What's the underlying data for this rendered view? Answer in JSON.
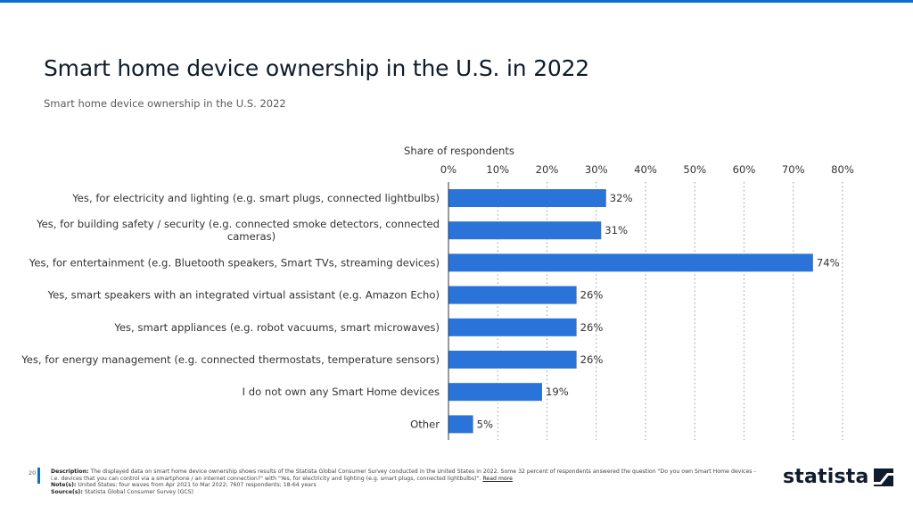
{
  "header": {
    "title": "Smart home device ownership in the U.S. in 2022",
    "subtitle": "Smart home device ownership in the U.S. 2022"
  },
  "chart_data": {
    "type": "bar",
    "orientation": "horizontal",
    "title": "Smart home device ownership in the U.S. in 2022",
    "xlabel": "Share of respondents",
    "ylabel": "",
    "xlim": [
      0,
      80
    ],
    "x_ticks": [
      0,
      10,
      20,
      30,
      40,
      50,
      60,
      70,
      80
    ],
    "x_tick_labels": [
      "0%",
      "10%",
      "20%",
      "30%",
      "40%",
      "50%",
      "60%",
      "70%",
      "80%"
    ],
    "grid": "vertical-dotted",
    "bar_color": "#2a73d9",
    "categories": [
      [
        "Yes, for electricity and lighting (e.g. smart plugs, connected lightbulbs)"
      ],
      [
        "Yes, for building safety / security (e.g. connected smoke detectors, connected",
        "cameras)"
      ],
      [
        "Yes, for entertainment (e.g. Bluetooth speakers, Smart TVs, streaming devices)"
      ],
      [
        "Yes, smart speakers with an integrated virtual assistant (e.g. Amazon Echo)"
      ],
      [
        "Yes, smart appliances (e.g. robot vacuums, smart microwaves)"
      ],
      [
        "Yes, for energy management (e.g. connected thermostats, temperature sensors)"
      ],
      [
        "I do not own any Smart Home devices"
      ],
      [
        "Other"
      ]
    ],
    "values": [
      32,
      31,
      74,
      26,
      26,
      26,
      19,
      5
    ],
    "value_labels": [
      "32%",
      "31%",
      "74%",
      "26%",
      "26%",
      "26%",
      "19%",
      "5%"
    ]
  },
  "footer": {
    "page_number": "20",
    "description_label": "Description:",
    "description": "The displayed data on smart home device ownership shows results of the Statista Global Consumer Survey conducted in the United States in 2022. Some 32 percent of respondents answered the question \"Do you own Smart Home devices - i.e. devices that you can control via a smartphone / an internet connection?\" with \"Yes, for electricity and lighting (e.g. smart plugs, connected lightbulbs)\".",
    "read_more": "Read more",
    "notes_label": "Note(s):",
    "notes": "United States; four waves from Apr 2021 to Mar 2022; 7607 respondents; 18-64 years",
    "source_label": "Source(s):",
    "source": "Statista Global Consumer Survey (GCS)",
    "logo_text": "statista"
  }
}
